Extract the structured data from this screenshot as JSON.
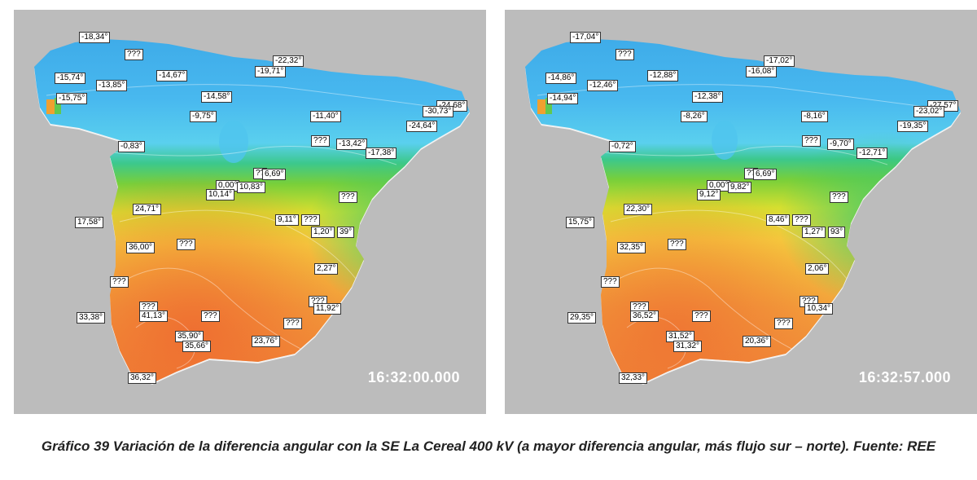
{
  "maps": [
    {
      "timestamp": "16:32:00.000",
      "labels": [
        "-18,34°",
        "???",
        "-22,32°",
        "-19,71°",
        "-15,74°",
        "-13,85°",
        "-14,67°",
        "-15,75°",
        "-14,58°",
        "-9,75°",
        "-11,40°",
        "-24,68°",
        "-30,73°",
        "-24,64°",
        "-0,83°",
        "???",
        "-13,42°",
        "-17,38°",
        "??",
        "6,69°",
        "0,00°",
        "10,14°",
        "10,83°",
        "???",
        "24,71°",
        "17,58°",
        "9,11°",
        "???",
        "1,20°",
        "39°",
        "36,00°",
        "???",
        "2,27°",
        "???",
        "???",
        "11,92°",
        "33,38°",
        "???",
        "41,13°",
        "???",
        "???",
        "35,90°",
        "35,66°",
        "23,76°",
        "36,32°"
      ]
    },
    {
      "timestamp": "16:32:57.000",
      "labels": [
        "-17,04°",
        "???",
        "-17,02°",
        "-16,08°",
        "-14,86°",
        "-12,46°",
        "-12,88°",
        "-14,94°",
        "-12,38°",
        "-8,26°",
        "-8,16°",
        "-27,57°",
        "-23,02°",
        "-19,35°",
        "-0,72°",
        "???",
        "-9,70°",
        "-12,71°",
        "??",
        "6,69°",
        "0,00°",
        "9,12°",
        "9,82°",
        "???",
        "22,30°",
        "15,75°",
        "8,46°",
        "???",
        "1,27°",
        "93°",
        "32,35°",
        "???",
        "2,06°",
        "???",
        "???",
        "10,34°",
        "29,35°",
        "???",
        "36,52°",
        "???",
        "???",
        "31,52°",
        "31,32°",
        "20,36°",
        "32,33°"
      ]
    }
  ],
  "caption": "Gráfico 39 Variación de la diferencia angular con la SE La Cereal 400 kV (a mayor diferencia angular, más flujo sur – norte). Fuente: REE"
}
